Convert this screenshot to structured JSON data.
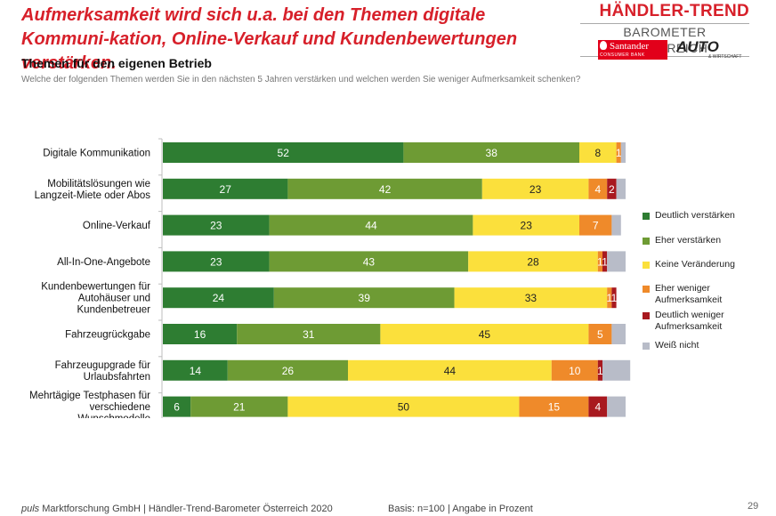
{
  "header": {
    "headline": "Aufmerksamkeit wird sich u.a. bei den Themen digitale Kommuni-kation, Online-Verkauf und Kundenbewertungen verstärken.",
    "brand_title": "HÄNDLER-TREND",
    "brand_sub": "BAROMETER ÖSTERREICH",
    "santander_name": "Santander",
    "santander_sub": "CONSUMER BANK",
    "auto_logo": "AUTO",
    "auto_sub": "& WIRTSCHAFT"
  },
  "subtitle": "Themen für den eigenen Betrieb",
  "question": "Welche der folgenden Themen werden Sie in den nächsten 5 Jahren verstärken und welchen werden Sie weniger Aufmerksamkeit schenken?",
  "footer": {
    "source_italic": "puls",
    "source_rest": " Marktforschung GmbH | Händler-Trend-Barometer Österreich 2020",
    "basis": "Basis: n=100 | Angabe in Prozent",
    "page": "29"
  },
  "chart_data": {
    "type": "bar",
    "orientation": "horizontal",
    "stacked": true,
    "categories": [
      [
        "Digitale Kommunikation"
      ],
      [
        "Mobilitätslösungen wie",
        "Langzeit-Miete oder Abos"
      ],
      [
        "Online-Verkauf"
      ],
      [
        "All-In-One-Angebote"
      ],
      [
        "Kundenbewertungen für",
        "Autohäuser und",
        "Kundenbetreuer"
      ],
      [
        "Fahrzeugrückgabe"
      ],
      [
        "Fahrzeugupgrade für",
        "Urlaubsfahrten"
      ],
      [
        "Mehrtägige Testphasen für",
        "verschiedene",
        "Wunschmodelle"
      ]
    ],
    "series": [
      {
        "name": "Deutlich verstärken",
        "color": "#2e7d32",
        "label_color": "#ffffff",
        "values": [
          52,
          27,
          23,
          23,
          24,
          16,
          14,
          6
        ]
      },
      {
        "name": "Eher verstärken",
        "color": "#6e9b34",
        "label_color": "#ffffff",
        "values": [
          38,
          42,
          44,
          43,
          39,
          31,
          26,
          21
        ]
      },
      {
        "name": "Keine Veränderung",
        "color": "#fbe03c",
        "label_color": "#222222",
        "values": [
          8,
          23,
          23,
          28,
          33,
          45,
          44,
          50
        ]
      },
      {
        "name": "Eher weniger Aufmerksamkeit",
        "color": "#ef8a2a",
        "label_color": "#ffffff",
        "values": [
          1,
          4,
          7,
          1,
          1,
          5,
          10,
          15
        ]
      },
      {
        "name": "Deutlich weniger Aufmerksamkeit",
        "color": "#a8191f",
        "label_color": "#ffffff",
        "values": [
          0,
          2,
          0,
          1,
          1,
          0,
          1,
          4
        ]
      },
      {
        "name": "Weiß nicht",
        "color": "#b8bcc8",
        "label_color": "#222222",
        "values": [
          1,
          2,
          2,
          4,
          0,
          3,
          6,
          4
        ]
      }
    ],
    "xlim": [
      0,
      100
    ],
    "grid": false,
    "legend_position": "right"
  }
}
